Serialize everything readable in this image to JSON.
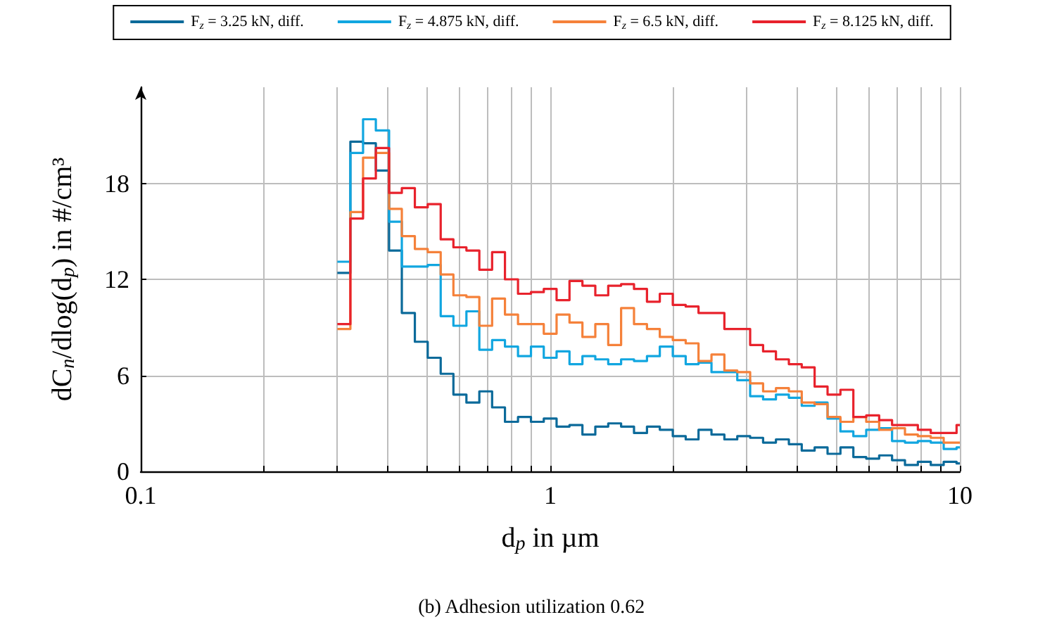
{
  "chart_data": {
    "type": "step",
    "x": [
      0.302,
      0.325,
      0.349,
      0.375,
      0.404,
      0.434,
      0.467,
      0.502,
      0.54,
      0.58,
      0.624,
      0.671,
      0.721,
      0.775,
      0.834,
      0.897,
      0.964,
      1.036,
      1.114,
      1.198,
      1.288,
      1.385,
      1.489,
      1.601,
      1.722,
      1.851,
      1.991,
      2.141,
      2.301,
      2.475,
      2.661,
      2.861,
      3.076,
      3.308,
      3.556,
      3.824,
      4.111,
      4.42,
      4.753,
      5.11,
      5.495,
      5.908,
      6.353,
      6.831,
      7.345,
      7.897,
      8.492,
      9.131,
      9.817,
      10
    ],
    "series": [
      {
        "name": "F$_{z}$ = 3.25 kN, diff.",
        "color": "#0b6a9a",
        "values": [
          12.4,
          20.6,
          20.5,
          18.8,
          13.8,
          9.9,
          8.1,
          7.1,
          6.1,
          4.8,
          4.3,
          5.0,
          4.0,
          3.1,
          3.4,
          3.1,
          3.3,
          2.8,
          2.9,
          2.3,
          2.8,
          3.0,
          2.8,
          2.4,
          2.8,
          2.6,
          2.2,
          2.0,
          2.6,
          2.3,
          2.0,
          2.2,
          2.1,
          1.8,
          2.0,
          1.7,
          1.3,
          1.5,
          1.1,
          1.5,
          0.9,
          0.8,
          1.0,
          0.7,
          0.4,
          0.6,
          0.4,
          0.6,
          0.5,
          0.5
        ]
      },
      {
        "name": "F$_{z}$ = 4.875 kN, diff.",
        "color": "#11a6e0",
        "values": [
          13.1,
          19.9,
          22.0,
          21.3,
          15.6,
          12.8,
          12.8,
          12.9,
          9.7,
          9.1,
          10.0,
          7.6,
          8.2,
          7.8,
          7.2,
          7.8,
          7.1,
          7.5,
          6.7,
          7.2,
          7.0,
          6.7,
          7.0,
          6.9,
          7.2,
          7.8,
          7.2,
          6.7,
          6.8,
          6.2,
          6.2,
          5.7,
          4.7,
          4.5,
          4.8,
          4.6,
          4.1,
          4.3,
          3.3,
          2.5,
          2.2,
          2.6,
          2.7,
          1.9,
          1.8,
          1.9,
          1.8,
          1.4,
          1.5,
          1.5
        ]
      },
      {
        "name": "F$_{z}$ = 6.5 kN, diff.",
        "color": "#f5813a",
        "values": [
          8.9,
          16.2,
          19.6,
          19.9,
          16.4,
          14.7,
          13.9,
          13.7,
          12.3,
          11.0,
          10.9,
          9.1,
          10.8,
          9.8,
          9.2,
          9.2,
          8.6,
          9.8,
          9.3,
          8.4,
          9.2,
          7.9,
          10.2,
          9.2,
          8.9,
          8.4,
          8.2,
          8.0,
          6.9,
          7.3,
          6.3,
          6.2,
          5.5,
          5.0,
          5.2,
          5.0,
          4.3,
          4.2,
          3.4,
          3.1,
          3.4,
          3.1,
          2.6,
          2.7,
          2.3,
          2.2,
          2.1,
          1.8,
          1.8,
          1.8
        ]
      },
      {
        "name": "F$_{z}$ = 8.125 kN, diff.",
        "color": "#e8222c",
        "values": [
          9.2,
          15.8,
          18.3,
          20.2,
          17.4,
          17.7,
          16.5,
          16.7,
          14.5,
          14.0,
          13.8,
          12.6,
          13.7,
          12.0,
          11.1,
          11.2,
          11.4,
          10.7,
          11.9,
          11.6,
          11.0,
          11.6,
          11.7,
          11.4,
          10.6,
          11.1,
          10.4,
          10.3,
          9.9,
          9.9,
          8.9,
          8.9,
          7.9,
          7.5,
          7.0,
          6.7,
          6.5,
          5.3,
          4.8,
          5.1,
          3.4,
          3.5,
          3.2,
          2.9,
          2.9,
          2.6,
          2.4,
          2.4,
          2.9,
          2.9
        ]
      }
    ],
    "xlabel": "d$_{p}$ in µm",
    "ylabel": "dC$_{n}$/dlog(d$_{p}$) in #/cm³",
    "log": "x",
    "xlim": [
      0.1,
      10
    ],
    "xticks": [
      0.1,
      {
        "value": 0.2,
        "label": null
      },
      {
        "value": 0.3,
        "label": null
      },
      {
        "value": 0.4,
        "label": null
      },
      {
        "value": 0.5,
        "label": null
      },
      {
        "value": 0.6,
        "label": null
      },
      {
        "value": 0.7,
        "label": null
      },
      {
        "value": 0.8,
        "label": null
      },
      {
        "value": 0.9,
        "label": null
      },
      1,
      {
        "value": 2,
        "label": null
      },
      {
        "value": 3,
        "label": null
      },
      {
        "value": 4,
        "label": null
      },
      {
        "value": 5,
        "label": null
      },
      {
        "value": 6,
        "label": null
      },
      {
        "value": 7,
        "label": null
      },
      {
        "value": 8,
        "label": null
      },
      {
        "value": 9,
        "label": null
      },
      10
    ],
    "ylim": [
      0,
      24
    ],
    "yticks": [
      0,
      6,
      12,
      18
    ],
    "grid": true,
    "legend": "top",
    "line_style": "solid",
    "annotations": [
      "(b) Adhesion utilization 0.62"
    ]
  }
}
